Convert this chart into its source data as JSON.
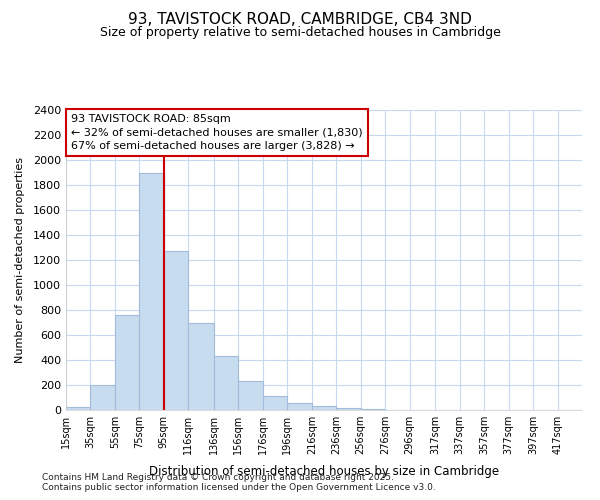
{
  "title1": "93, TAVISTOCK ROAD, CAMBRIDGE, CB4 3ND",
  "title2": "Size of property relative to semi-detached houses in Cambridge",
  "xlabel": "Distribution of semi-detached houses by size in Cambridge",
  "ylabel": "Number of semi-detached properties",
  "footnote1": "Contains HM Land Registry data © Crown copyright and database right 2025.",
  "footnote2": "Contains public sector information licensed under the Open Government Licence v3.0.",
  "annotation_title": "93 TAVISTOCK ROAD: 85sqm",
  "annotation_line1": "← 32% of semi-detached houses are smaller (1,830)",
  "annotation_line2": "67% of semi-detached houses are larger (3,828) →",
  "property_size": 85,
  "categories": [
    "15sqm",
    "35sqm",
    "55sqm",
    "75sqm",
    "95sqm",
    "116sqm",
    "136sqm",
    "156sqm",
    "176sqm",
    "196sqm",
    "216sqm",
    "236sqm",
    "256sqm",
    "276sqm",
    "296sqm",
    "317sqm",
    "337sqm",
    "357sqm",
    "377sqm",
    "397sqm",
    "417sqm"
  ],
  "bin_edges": [
    5,
    25,
    45,
    65,
    85,
    105,
    126,
    146,
    166,
    186,
    206,
    226,
    246,
    266,
    286,
    307,
    327,
    347,
    367,
    387,
    407,
    427
  ],
  "values": [
    25,
    200,
    760,
    1900,
    1270,
    700,
    430,
    230,
    110,
    60,
    30,
    15,
    8,
    4,
    2,
    1,
    0,
    0,
    0,
    0,
    0
  ],
  "bar_color": "#c8dcf0",
  "bar_edge_color": "#a0bcd8",
  "marker_line_color": "#cc0000",
  "ylim": [
    0,
    2400
  ],
  "yticks": [
    0,
    200,
    400,
    600,
    800,
    1000,
    1200,
    1400,
    1600,
    1800,
    2000,
    2200,
    2400
  ],
  "background_color": "#ffffff",
  "grid_color": "#c8d8f0",
  "annotation_box_color": "#ffffff",
  "annotation_box_edge_color": "#cc0000",
  "title1_fontsize": 11,
  "title2_fontsize": 9
}
